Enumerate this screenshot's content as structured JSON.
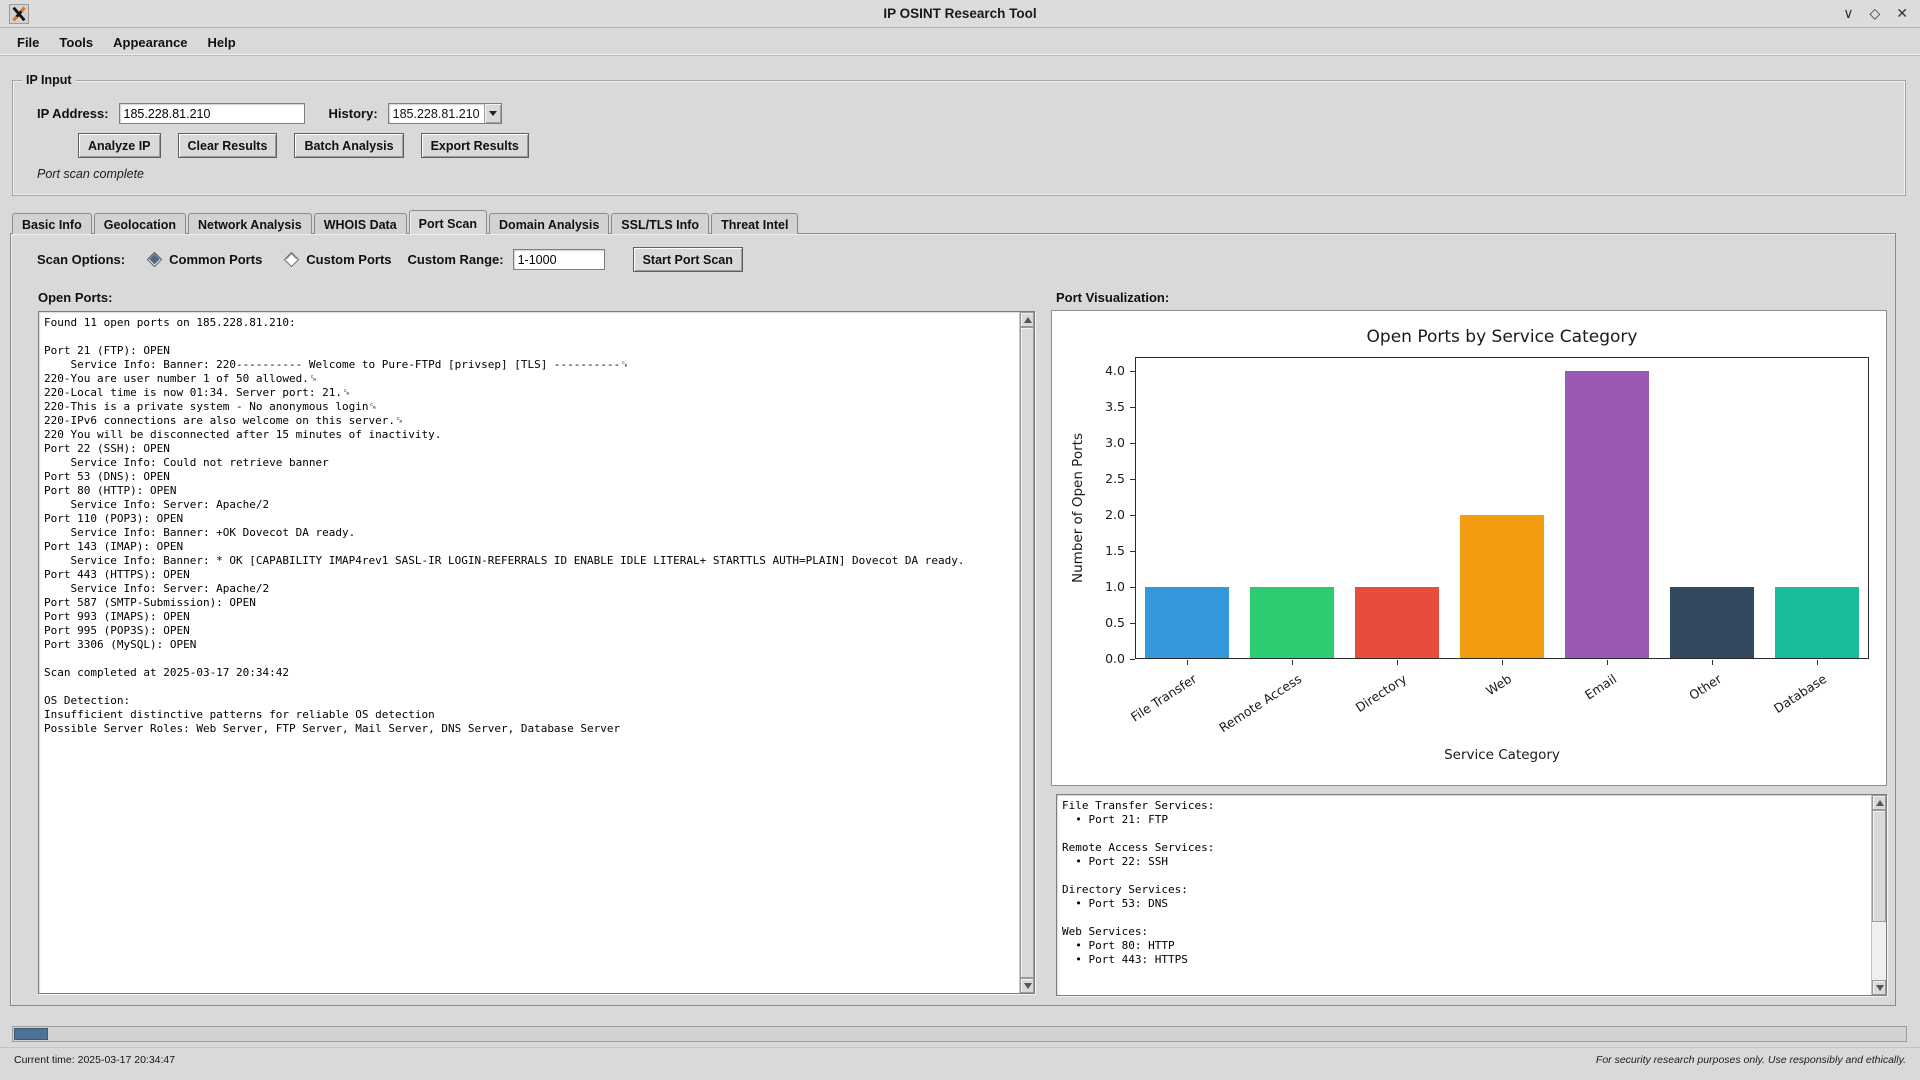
{
  "window": {
    "title": "IP OSINT Research Tool",
    "controls": {
      "minimize": "∨",
      "maximize": "◇",
      "close": "✕"
    }
  },
  "menu": {
    "items": [
      "File",
      "Tools",
      "Appearance",
      "Help"
    ]
  },
  "ip_input": {
    "frame_label": "IP Input",
    "ip_label": "IP Address:",
    "ip_value": "185.228.81.210",
    "history_label": "History:",
    "history_value": "185.228.81.210",
    "buttons": {
      "analyze": "Analyze IP",
      "clear": "Clear Results",
      "batch": "Batch Analysis",
      "export": "Export Results"
    },
    "status": "Port scan complete"
  },
  "tabs": [
    {
      "label": "Basic Info",
      "active": false
    },
    {
      "label": "Geolocation",
      "active": false
    },
    {
      "label": "Network Analysis",
      "active": false
    },
    {
      "label": "WHOIS Data",
      "active": false
    },
    {
      "label": "Port Scan",
      "active": true
    },
    {
      "label": "Domain Analysis",
      "active": false
    },
    {
      "label": "SSL/TLS Info",
      "active": false
    },
    {
      "label": "Threat Intel",
      "active": false
    }
  ],
  "port_scan": {
    "scan_options_label": "Scan Options:",
    "radio_common": "Common Ports",
    "radio_custom": "Custom Ports",
    "common_selected": true,
    "custom_range_label": "Custom Range:",
    "custom_range_value": "1-1000",
    "start_button": "Start Port Scan",
    "open_ports_label": "Open Ports:",
    "visualization_label": "Port Visualization:",
    "results_lines": [
      "Found 11 open ports on 185.228.81.210:",
      "",
      "Port 21 (FTP): OPEN",
      "    Service Info: Banner: 220---------- Welcome to Pure-FTPd [privsep] [TLS] ----------␍",
      "220-You are user number 1 of 50 allowed.␍",
      "220-Local time is now 01:34. Server port: 21.␍",
      "220-This is a private system - No anonymous login␍",
      "220-IPv6 connections are also welcome on this server.␍",
      "220 You will be disconnected after 15 minutes of inactivity.",
      "Port 22 (SSH): OPEN",
      "    Service Info: Could not retrieve banner",
      "Port 53 (DNS): OPEN",
      "Port 80 (HTTP): OPEN",
      "    Service Info: Server: Apache/2",
      "Port 110 (POP3): OPEN",
      "    Service Info: Banner: +OK Dovecot DA ready.",
      "Port 143 (IMAP): OPEN",
      "    Service Info: Banner: * OK [CAPABILITY IMAP4rev1 SASL-IR LOGIN-REFERRALS ID ENABLE IDLE LITERAL+ STARTTLS AUTH=PLAIN] Dovecot DA ready.",
      "Port 443 (HTTPS): OPEN",
      "    Service Info: Server: Apache/2",
      "Port 587 (SMTP-Submission): OPEN",
      "Port 993 (IMAPS): OPEN",
      "Port 995 (POP3S): OPEN",
      "Port 3306 (MySQL): OPEN",
      "",
      "Scan completed at 2025-03-17 20:34:42",
      "",
      "OS Detection:",
      "Insufficient distinctive patterns for reliable OS detection",
      "Possible Server Roles: Web Server, FTP Server, Mail Server, DNS Server, Database Server"
    ],
    "service_lines": [
      "File Transfer Services:",
      "  • Port 21: FTP",
      "",
      "Remote Access Services:",
      "  • Port 22: SSH",
      "",
      "Directory Services:",
      "  • Port 53: DNS",
      "",
      "Web Services:",
      "  • Port 80: HTTP",
      "  • Port 443: HTTPS"
    ]
  },
  "chart_data": {
    "type": "bar",
    "title": "Open Ports by Service Category",
    "categories": [
      "File Transfer",
      "Remote Access",
      "Directory",
      "Web",
      "Email",
      "Other",
      "Database"
    ],
    "values": [
      1,
      1,
      1,
      2,
      4,
      1,
      1
    ],
    "xlabel": "Service Category",
    "ylabel": "Number of Open Ports",
    "ylim": [
      0,
      4.2
    ],
    "yticks": [
      0.0,
      0.5,
      1.0,
      1.5,
      2.0,
      2.5,
      3.0,
      3.5,
      4.0
    ],
    "bar_colors": [
      "#3498db",
      "#2ecc71",
      "#e74c3c",
      "#f39c12",
      "#9b59b6",
      "#34495e",
      "#1abc9c"
    ],
    "tick_label_rotation": -33,
    "grid": false,
    "legend": "none"
  },
  "statusbar": {
    "time": "Current time: 2025-03-17 20:34:47",
    "disclaimer": "For security research purposes only. Use responsibly and ethically.",
    "progress_percent": 1.8
  }
}
